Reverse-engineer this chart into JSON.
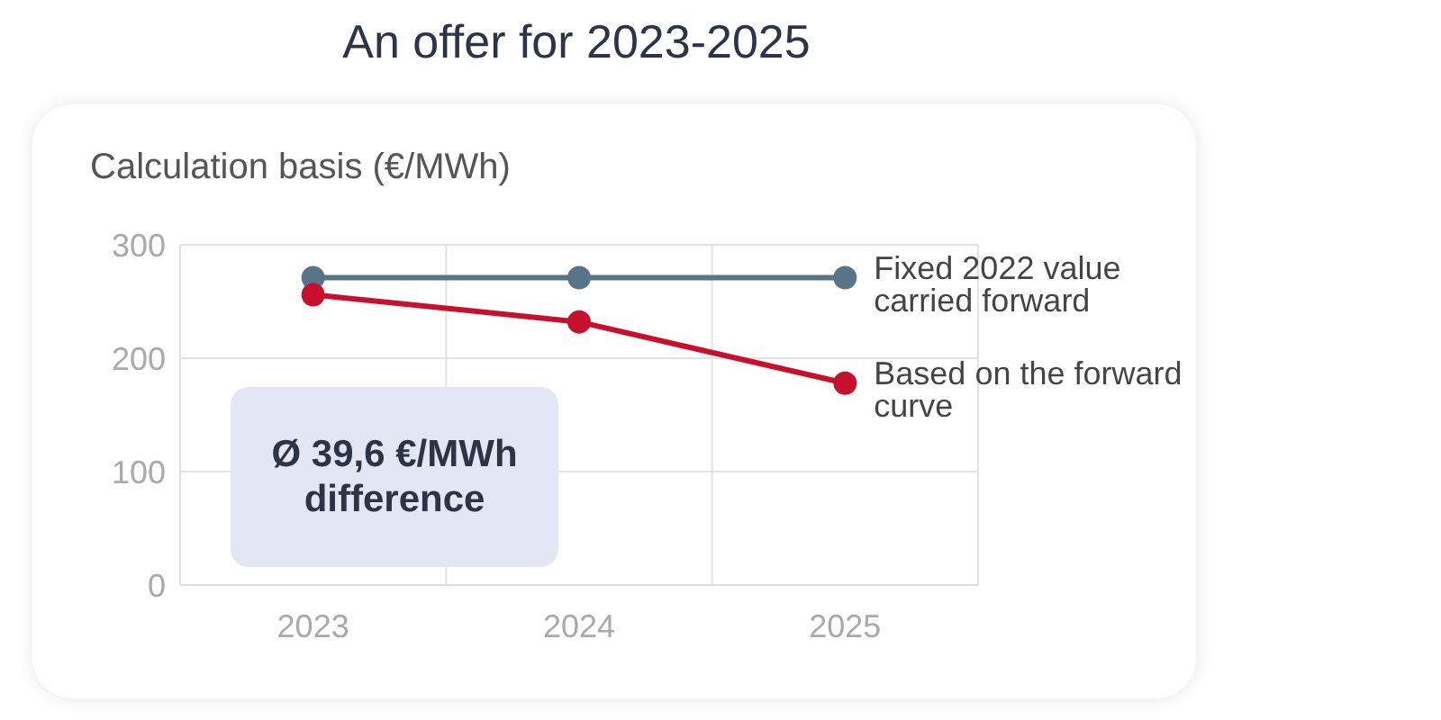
{
  "chart_data": {
    "type": "line",
    "title": "An offer for 2023-2025",
    "ylabel": "Calculation basis (€/MWh)",
    "categories": [
      "2023",
      "2024",
      "2025"
    ],
    "series": [
      {
        "name": "Fixed 2022 value carried forward",
        "color": "#587489",
        "values": [
          271,
          271,
          271
        ]
      },
      {
        "name": "Based on the forward curve",
        "color": "#c8102e",
        "values": [
          256,
          232,
          178
        ]
      }
    ],
    "ylim": [
      0,
      300
    ],
    "yticks": [
      0,
      100,
      200,
      300
    ],
    "grid": true,
    "marker": "circle",
    "line_style": "solid",
    "annotations": [
      "Ø 39,6 €/MWh difference"
    ]
  }
}
